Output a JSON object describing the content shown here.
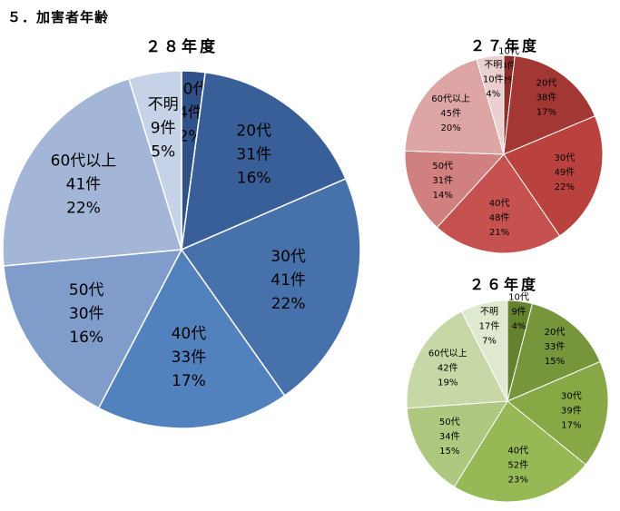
{
  "page": {
    "heading": "５．加害者年齢"
  },
  "chart_data": [
    {
      "type": "pie",
      "title": "２８年度",
      "categories": [
        "10代",
        "20代",
        "30代",
        "40代",
        "50代",
        "60代以上",
        "不明"
      ],
      "counts": [
        "4件",
        "31件",
        "41件",
        "33件",
        "30件",
        "41件",
        "9件"
      ],
      "percents": [
        "2%",
        "16%",
        "22%",
        "17%",
        "16%",
        "22%",
        "5%"
      ],
      "values": [
        4,
        31,
        41,
        33,
        30,
        41,
        9
      ],
      "colors": [
        "#2e5187",
        "#395f98",
        "#4671ab",
        "#5282be",
        "#7f9ccb",
        "#a3b6d7",
        "#c6d2e7"
      ]
    },
    {
      "type": "pie",
      "title": "２７年度",
      "categories": [
        "10代",
        "20代",
        "30代",
        "40代",
        "50代",
        "60代以上",
        "不明"
      ],
      "counts": [
        "4件",
        "38件",
        "49件",
        "48件",
        "31件",
        "45件",
        "10件"
      ],
      "percents": [
        "2%",
        "17%",
        "22%",
        "21%",
        "14%",
        "20%",
        "4%"
      ],
      "values": [
        4,
        38,
        49,
        48,
        31,
        45,
        10
      ],
      "colors": [
        "#8d2d2b",
        "#a33734",
        "#b9423e",
        "#c65250",
        "#d0807e",
        "#dda6a5",
        "#ecd0cf"
      ]
    },
    {
      "type": "pie",
      "title": "２６年度",
      "categories": [
        "10代",
        "20代",
        "30代",
        "40代",
        "50代",
        "60代以上",
        "不明"
      ],
      "counts": [
        "9件",
        "33件",
        "39件",
        "52件",
        "34件",
        "42件",
        "17件"
      ],
      "percents": [
        "4%",
        "15%",
        "17%",
        "23%",
        "15%",
        "19%",
        "7%"
      ],
      "values": [
        9,
        33,
        39,
        52,
        34,
        42,
        17
      ],
      "colors": [
        "#67822f",
        "#77953a",
        "#87a845",
        "#97b955",
        "#aec97f",
        "#c5d8a5",
        "#dfe9cf"
      ]
    }
  ]
}
